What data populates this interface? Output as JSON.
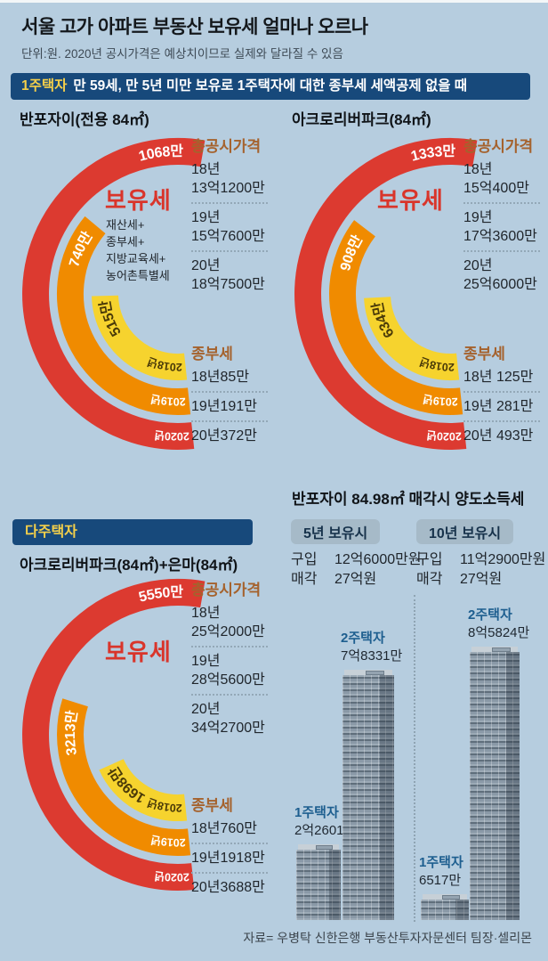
{
  "header": {
    "title": "서울 고가 아파트 부동산 보유세 얼마나 오르나",
    "subtitle": "단위:원. 2020년 공시가격은 예상치이므로 실제와 달라질 수 있음"
  },
  "banners": {
    "single_tag": "1주택자",
    "single_text": "만 59세, 만 5년 미만 보유로 1주택자에 대한 종부세 세액공제 없을 때",
    "multi": "다주택자"
  },
  "colors": {
    "background": "#b6cddf",
    "red": "#dc3a30",
    "orange": "#f08b00",
    "yellow": "#f6d32e",
    "navy": "#17497b",
    "banner_yellow": "#f5d04a",
    "brown": "#a5622d",
    "label_blue": "#1d5e8f",
    "badge_bg": "#a6bac8"
  },
  "chart_data": [
    {
      "type": "arc-rings",
      "title": "반포자이(전용 84㎡)",
      "center_label": "보유세",
      "center_sublabels": [
        "재산세+",
        "종부세+",
        "지방교육세+",
        "농어촌특별세"
      ],
      "unit": "만원",
      "years": [
        "2018년",
        "2019년",
        "2020년"
      ],
      "values": [
        515,
        740,
        1068
      ],
      "value_labels": [
        "515만",
        "740만",
        "1068만"
      ],
      "ring_colors": [
        "yellow",
        "orange",
        "red"
      ],
      "price_header": "총공시가격",
      "prices": [
        [
          "18년",
          "13억1200만"
        ],
        [
          "19년",
          "15억7600만"
        ],
        [
          "20년",
          "18억7500만"
        ]
      ],
      "jongbuse_header": "종부세",
      "jongbuse_rows": [
        "18년85만",
        "19년191만",
        "20년372만"
      ]
    },
    {
      "type": "arc-rings",
      "title": "아크로리버파크(84㎡)",
      "center_label": "보유세",
      "unit": "만원",
      "years": [
        "2018년",
        "2019년",
        "2020년"
      ],
      "values": [
        634,
        908,
        1333
      ],
      "value_labels": [
        "634만",
        "908만",
        "1333만"
      ],
      "ring_colors": [
        "yellow",
        "orange",
        "red"
      ],
      "price_header": "총공시가격",
      "prices": [
        [
          "18년",
          "15억400만"
        ],
        [
          "19년",
          "17억3600만"
        ],
        [
          "20년",
          "25억6000만"
        ]
      ],
      "jongbuse_header": "종부세",
      "jongbuse_rows": [
        "18년 125만",
        "19년 281만",
        "20년 493만"
      ]
    },
    {
      "type": "arc-rings",
      "title": "아크로리버파크(84㎡)+은마(84㎡)",
      "center_label": "보유세",
      "unit": "만원",
      "years": [
        "2018년",
        "2019년",
        "2020년"
      ],
      "values": [
        1698,
        3213,
        5550
      ],
      "value_labels": [
        "1698만",
        "3213만",
        "5550만"
      ],
      "ring_colors": [
        "yellow",
        "orange",
        "red"
      ],
      "price_header": "총공시가격",
      "prices": [
        [
          "18년",
          "25억2000만"
        ],
        [
          "19년",
          "28억5600만"
        ],
        [
          "20년",
          "34억2700만"
        ]
      ],
      "jongbuse_header": "종부세",
      "jongbuse_rows": [
        "18년760만",
        "19년1918만",
        "20년3688만"
      ]
    },
    {
      "type": "bar",
      "title": "반포자이 84.98㎡ 매각시 양도소득세",
      "unit": "만원",
      "groups": [
        {
          "badge": "5년 보유시",
          "info_rows": [
            [
              "구입",
              "12억6000만원"
            ],
            [
              "매각",
              "27억원"
            ]
          ],
          "bars": [
            {
              "label": "1주택자",
              "value_label": "2억2601만",
              "value": 22601
            },
            {
              "label": "2주택자",
              "value_label": "7억8331만",
              "value": 78331
            }
          ]
        },
        {
          "badge": "10년 보유시",
          "info_rows": [
            [
              "구입",
              "11억2900만원"
            ],
            [
              "매각",
              "27억원"
            ]
          ],
          "bars": [
            {
              "label": "1주택자",
              "value_label": "6517만",
              "value": 6517
            },
            {
              "label": "2주택자",
              "value_label": "8억5824만",
              "value": 85824
            }
          ]
        }
      ]
    }
  ],
  "source": "자료= 우병탁 신한은행 부동산투자자문센터 팀장·셀리몬"
}
